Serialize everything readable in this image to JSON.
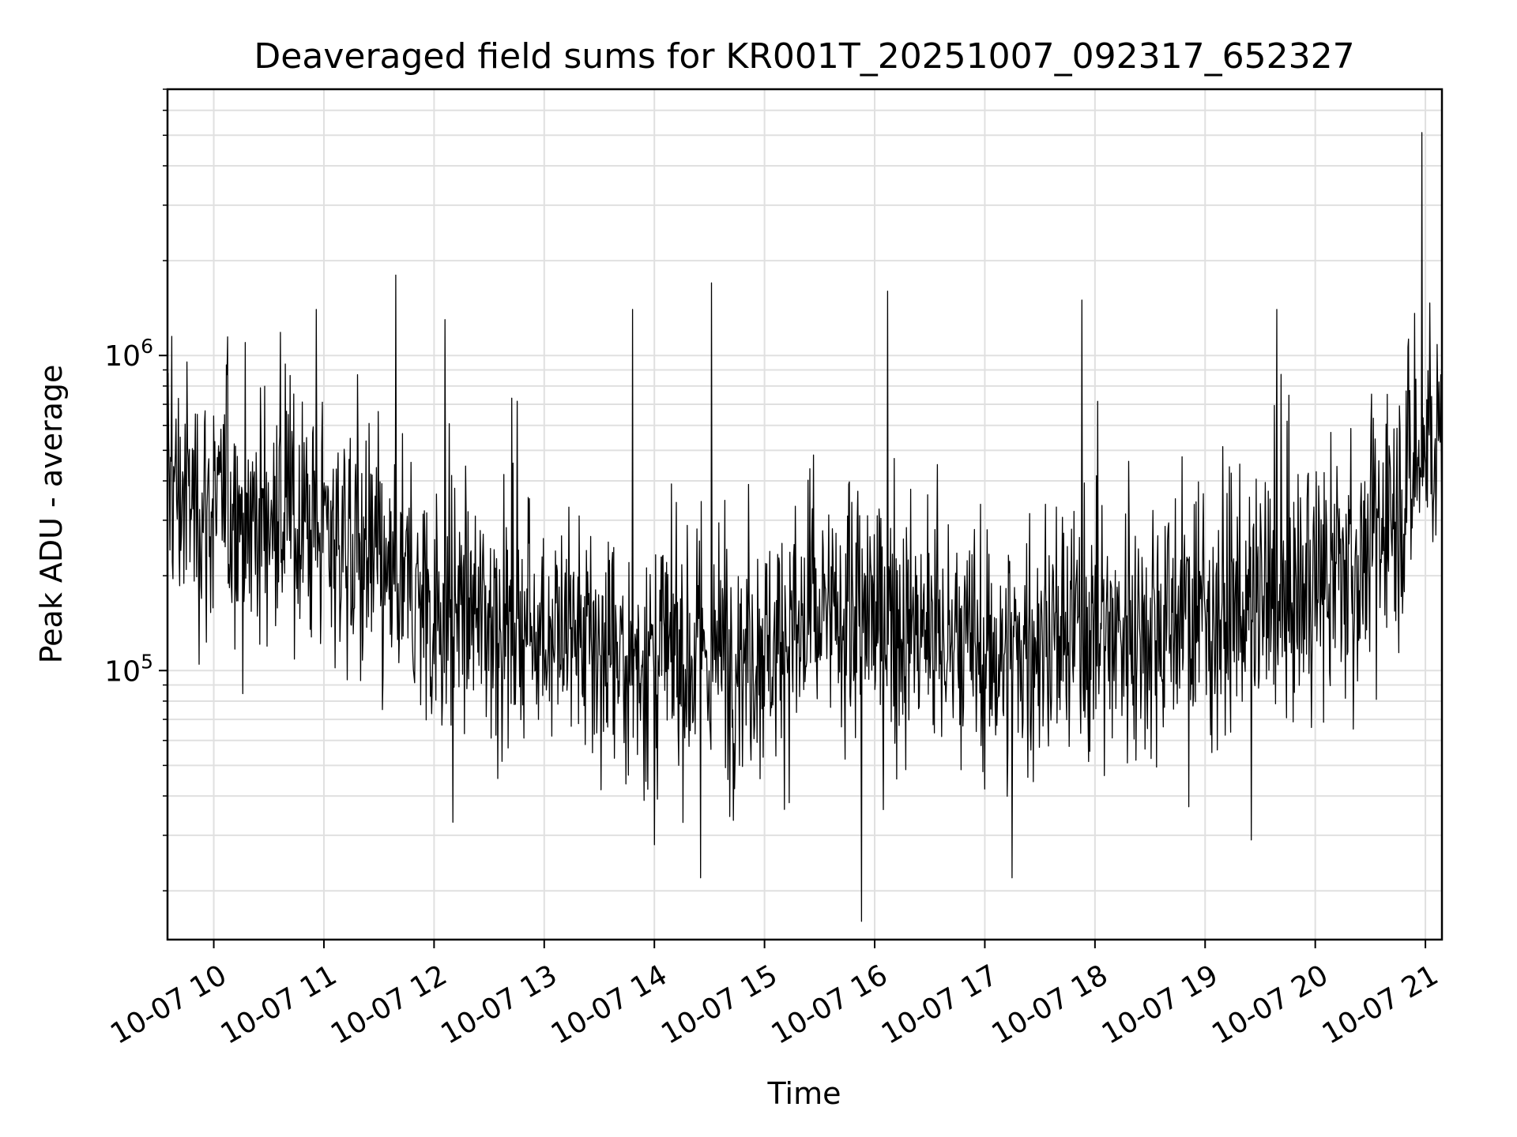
{
  "chart_data": {
    "type": "line",
    "title": "Deaveraged field sums for KR001T_20251007_092317_652327",
    "xlabel": "Time",
    "ylabel": "Peak ADU - average",
    "yscale": "log",
    "ylim": [
      14000,
      7000000
    ],
    "xlim_hours": [
      9.58,
      21.15
    ],
    "grid": true,
    "line_color": "#000000",
    "grid_color": "#e0e0e0",
    "x_ticks": [
      {
        "label": "10-07 10",
        "hour": 10
      },
      {
        "label": "10-07 11",
        "hour": 11
      },
      {
        "label": "10-07 12",
        "hour": 12
      },
      {
        "label": "10-07 13",
        "hour": 13
      },
      {
        "label": "10-07 14",
        "hour": 14
      },
      {
        "label": "10-07 15",
        "hour": 15
      },
      {
        "label": "10-07 16",
        "hour": 16
      },
      {
        "label": "10-07 17",
        "hour": 17
      },
      {
        "label": "10-07 18",
        "hour": 18
      },
      {
        "label": "10-07 19",
        "hour": 19
      },
      {
        "label": "10-07 20",
        "hour": 20
      },
      {
        "label": "10-07 21",
        "hour": 21
      }
    ],
    "y_ticks": [
      {
        "base": "10",
        "exp": "5",
        "value": 100000
      },
      {
        "base": "10",
        "exp": "6",
        "value": 1000000
      }
    ],
    "series": [
      {
        "name": "Peak ADU - average",
        "description": "Dense noisy time series (~2000 samples), median trend and envelope below",
        "trend_hours": [
          9.58,
          10.0,
          10.5,
          11.0,
          11.3,
          11.6,
          12.0,
          12.5,
          13.0,
          13.5,
          14.0,
          14.5,
          15.0,
          15.5,
          16.0,
          16.5,
          17.0,
          17.5,
          18.0,
          18.5,
          19.0,
          19.5,
          20.0,
          20.5,
          20.8,
          21.0,
          21.15
        ],
        "trend_median": [
          380000,
          320000,
          300000,
          290000,
          240000,
          180000,
          160000,
          150000,
          140000,
          110000,
          110000,
          110000,
          120000,
          140000,
          150000,
          125000,
          110000,
          120000,
          130000,
          140000,
          150000,
          160000,
          180000,
          230000,
          360000,
          510000,
          580000
        ],
        "spikes": [
          {
            "hour": 9.62,
            "value": 1150000
          },
          {
            "hour": 10.93,
            "value": 1400000
          },
          {
            "hour": 11.65,
            "value": 1800000
          },
          {
            "hour": 12.1,
            "value": 1300000
          },
          {
            "hour": 13.8,
            "value": 1400000
          },
          {
            "hour": 14.52,
            "value": 1700000
          },
          {
            "hour": 16.12,
            "value": 1600000
          },
          {
            "hour": 17.88,
            "value": 1500000
          },
          {
            "hour": 19.65,
            "value": 1400000
          },
          {
            "hour": 20.97,
            "value": 5100000
          }
        ],
        "dips": [
          {
            "hour": 12.17,
            "value": 33000
          },
          {
            "hour": 14.42,
            "value": 22000
          },
          {
            "hour": 14.0,
            "value": 28000
          },
          {
            "hour": 15.88,
            "value": 16000
          },
          {
            "hour": 17.25,
            "value": 22000
          },
          {
            "hour": 19.42,
            "value": 29000
          }
        ]
      }
    ]
  }
}
